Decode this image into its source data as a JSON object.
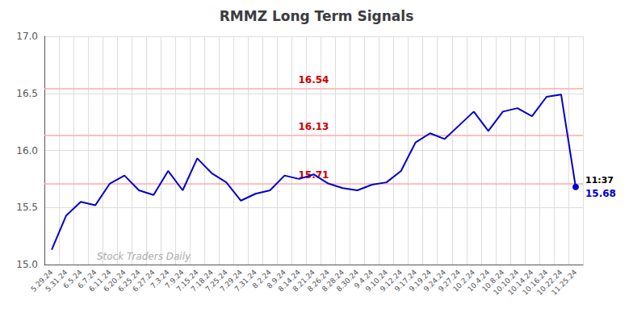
{
  "chart_data": {
    "type": "line",
    "title": "RMMZ Long Term Signals",
    "categories": [
      "5.29.24",
      "5.31.24",
      "6.5.24",
      "6.7.24",
      "6.11.24",
      "6.20.24",
      "6.25.24",
      "6.27.24",
      "7.3.24",
      "7.9.24",
      "7.15.24",
      "7.18.24",
      "7.25.24",
      "7.29.24",
      "7.31.24",
      "8.2.24",
      "8.9.24",
      "8.14.24",
      "8.21.24",
      "8.26.24",
      "8.28.24",
      "8.30.24",
      "9.4.24",
      "9.10.24",
      "9.12.24",
      "9.17.24",
      "9.19.24",
      "9.24.24",
      "9.27.24",
      "10.2.24",
      "10.4.24",
      "10.8.24",
      "10.10.24",
      "10.14.24",
      "10.16.24",
      "10.22.24",
      "11.25.24"
    ],
    "values": [
      15.13,
      15.43,
      15.55,
      15.52,
      15.71,
      15.78,
      15.65,
      15.61,
      15.82,
      15.65,
      15.93,
      15.8,
      15.72,
      15.56,
      15.62,
      15.65,
      15.78,
      15.75,
      15.79,
      15.71,
      15.67,
      15.65,
      15.7,
      15.72,
      15.82,
      16.07,
      16.15,
      16.1,
      16.22,
      16.34,
      16.17,
      16.34,
      16.37,
      16.3,
      16.47,
      16.49,
      15.68
    ],
    "color": "#0000cc",
    "ylim": [
      15.0,
      17.0
    ],
    "yticks": [
      {
        "value": 15.0,
        "label": "15.0"
      },
      15.5,
      {
        "value": 16.0,
        "label": "16.0"
      },
      16.5,
      {
        "value": 17.0,
        "label": "17.0"
      }
    ],
    "grid": true,
    "hlines": [
      {
        "value": 16.54,
        "label": "16.54",
        "color": "#ffaaaa"
      },
      {
        "value": 16.13,
        "label": "16.13",
        "color": "#ffaaaa"
      },
      {
        "value": 15.71,
        "label": "15.71",
        "color": "#ffaaaa"
      }
    ],
    "annotation_time": "11:37",
    "annotation_price": "15.68",
    "watermark": "Stock Traders Daily"
  }
}
